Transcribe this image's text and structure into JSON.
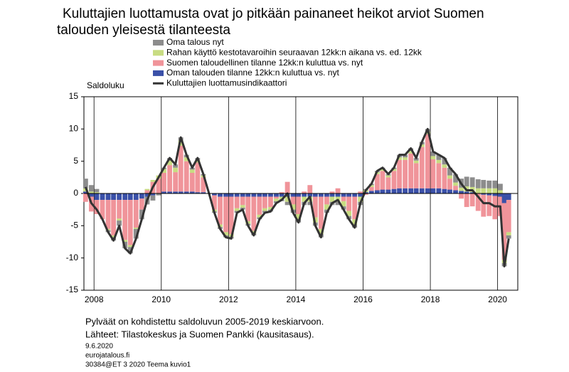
{
  "chart_data": {
    "type": "bar",
    "title_lines": [
      "Kuluttajien luottamusta ovat jo pitkään painaneet heikot arviot Suomen",
      "talouden yleisestä tilanteesta"
    ],
    "y_label": "Saldoluku",
    "notes": [
      "Pylväät on kohdistettu saldoluvun 2005-2019 keskiarvoon.",
      "Lähteet: Tilastokeskus ja Suomen Pankki (kausitasaus)."
    ],
    "footer": [
      "9.6.2020",
      "eurojatalous.fi",
      "30384@ET 3 2020 Teema kuvio1"
    ],
    "x": [
      2007.75,
      2007.92,
      2008.08,
      2008.25,
      2008.42,
      2008.58,
      2008.75,
      2008.92,
      2009.08,
      2009.25,
      2009.42,
      2009.58,
      2009.75,
      2009.92,
      2010.08,
      2010.25,
      2010.42,
      2010.58,
      2010.75,
      2010.92,
      2011.08,
      2011.25,
      2011.42,
      2011.58,
      2011.75,
      2011.92,
      2012.08,
      2012.25,
      2012.42,
      2012.58,
      2012.75,
      2012.92,
      2013.08,
      2013.25,
      2013.42,
      2013.58,
      2013.75,
      2013.92,
      2014.08,
      2014.25,
      2014.42,
      2014.58,
      2014.75,
      2014.92,
      2015.08,
      2015.25,
      2015.42,
      2015.58,
      2015.75,
      2015.92,
      2016.08,
      2016.25,
      2016.42,
      2016.58,
      2016.75,
      2016.92,
      2017.08,
      2017.25,
      2017.42,
      2017.58,
      2017.75,
      2017.92,
      2018.08,
      2018.25,
      2018.42,
      2018.58,
      2018.75,
      2018.92,
      2019.08,
      2019.25,
      2019.42,
      2019.58,
      2019.75,
      2019.92,
      2020.08,
      2020.2,
      2020.33
    ],
    "xlim": [
      2007.7,
      2020.6
    ],
    "xticks": [
      2008,
      2010,
      2012,
      2014,
      2016,
      2018,
      2020
    ],
    "ylim": [
      -15,
      15
    ],
    "yticks": [
      -15,
      -10,
      -5,
      0,
      5,
      10,
      15
    ],
    "grid": true,
    "series": [
      {
        "name": "Oma talous nyt",
        "color": "#8c8c8c",
        "type": "bar",
        "values": [
          1.5,
          1,
          0.5,
          0,
          -0.3,
          -0.5,
          -0.8,
          -1,
          -1,
          -1.5,
          -1.5,
          -1.2,
          -0.8,
          -0.3,
          0.2,
          0.4,
          0.5,
          0.5,
          0.4,
          0.3,
          0.3,
          0.2,
          0,
          -0.2,
          -0.3,
          -0.3,
          -0.3,
          -0.3,
          -0.3,
          -0.3,
          -0.3,
          -0.3,
          -0.3,
          -0.3,
          -0.3,
          -0.3,
          -0.5,
          -0.5,
          -0.5,
          -0.5,
          -0.5,
          -0.5,
          -0.5,
          -0.5,
          -0.5,
          -0.5,
          -0.5,
          -0.5,
          -0.5,
          -0.5,
          0.2,
          0.2,
          0.2,
          0.2,
          0.2,
          0.2,
          0.4,
          0.4,
          0.4,
          0.4,
          0.4,
          0.4,
          0.7,
          0.8,
          1,
          1.2,
          1.3,
          1.4,
          1.5,
          1.5,
          1.4,
          1.3,
          1.2,
          1.2,
          1,
          -0.5,
          -0.5
        ]
      },
      {
        "name": "Rahan käyttö kestotavaroihin seuraavan 12kk:n aikana vs. ed. 12kk",
        "color": "#c8dc82",
        "type": "bar",
        "values": [
          0.5,
          0.3,
          0.2,
          0,
          -0.2,
          -0.3,
          -0.3,
          -0.3,
          -0.3,
          -0.2,
          0,
          0.2,
          0.3,
          0.5,
          0.6,
          0.7,
          0.7,
          0.8,
          0.6,
          0.5,
          0.4,
          0.3,
          0,
          -0.3,
          -0.4,
          -0.5,
          -0.4,
          -0.4,
          -0.4,
          -0.4,
          -0.4,
          -0.4,
          -0.4,
          -0.4,
          -0.4,
          -0.4,
          -0.8,
          -0.8,
          -0.8,
          -0.8,
          -0.8,
          -0.8,
          -0.8,
          -0.8,
          -0.8,
          -0.8,
          -0.8,
          -0.8,
          -0.8,
          -0.8,
          0.3,
          0.3,
          0.3,
          0.3,
          0.3,
          0.3,
          0.4,
          0.4,
          0.4,
          0.4,
          0.4,
          0.4,
          0.5,
          0.5,
          0.5,
          0.5,
          0.5,
          0.5,
          0.8,
          0.8,
          0.8,
          0.8,
          0.8,
          0.8,
          0.5,
          -0.5,
          -0.5
        ]
      },
      {
        "name": "Suomen taloudellinen tilanne 12kk:n kuluttua vs. nyt",
        "color": "#f0949a",
        "type": "bar",
        "values": [
          -1.3,
          -2.3,
          -2.2,
          -3,
          -4.5,
          -5.5,
          -2.9,
          -6.2,
          -7,
          -4.3,
          -1.7,
          0.5,
          1.8,
          2.3,
          2.9,
          4.1,
          3,
          7.1,
          4.7,
          2.9,
          4.6,
          2.3,
          0,
          -2.2,
          -4.3,
          -5.5,
          -5.8,
          -1.8,
          -1.3,
          -3.8,
          -5.3,
          -2.8,
          -1.8,
          -1.6,
          -0.3,
          0.2,
          1.8,
          -1.2,
          -2.7,
          0.3,
          1.3,
          -3.2,
          -5,
          -1.2,
          0.3,
          0.8,
          -0.7,
          -2.2,
          -3.5,
          0.3,
          -0.2,
          0.6,
          2.5,
          2.9,
          1.9,
          2.8,
          4.4,
          4.4,
          5.4,
          3.9,
          6.4,
          8.4,
          4.5,
          3.9,
          3.3,
          1.7,
          0.7,
          -0.8,
          -2.1,
          -2,
          -2.7,
          -3.4,
          -3.2,
          -3.6,
          -3,
          -8.8,
          -5
        ]
      },
      {
        "name": "Oman talouden tilanne 12kk:n kuluttua vs. nyt",
        "color": "#3a50a8",
        "type": "bar",
        "values": [
          0.3,
          -0.5,
          -1,
          -1,
          -1,
          -1,
          -1,
          -1,
          -1,
          -1,
          -0.8,
          -0.5,
          -0.3,
          0,
          0.3,
          0.3,
          0.3,
          0.3,
          0.3,
          0.3,
          0.2,
          0.2,
          0,
          -0.3,
          -0.5,
          -0.5,
          -0.5,
          -0.5,
          -0.5,
          -0.5,
          -0.5,
          -0.5,
          -0.5,
          -0.5,
          -0.5,
          -0.5,
          -0.5,
          -0.5,
          -0.5,
          -0.5,
          -0.5,
          -0.5,
          -0.5,
          -0.5,
          -0.5,
          -0.5,
          -0.5,
          -0.5,
          -0.5,
          -0.5,
          0.2,
          0.4,
          0.5,
          0.6,
          0.6,
          0.7,
          0.8,
          0.8,
          0.8,
          0.8,
          0.8,
          0.8,
          0.8,
          0.8,
          0.7,
          0.6,
          0.5,
          0.4,
          0.3,
          0.2,
          0,
          -0.2,
          -0.3,
          -0.4,
          -0.5,
          -1.5,
          -1
        ]
      },
      {
        "name": "Kuluttajien luottamusindikaattori",
        "color": "#333333",
        "type": "line",
        "values": [
          1,
          -1.5,
          -2.5,
          -4,
          -6,
          -7.3,
          -5,
          -8.5,
          -9.3,
          -7,
          -4,
          -1,
          1,
          2.5,
          4,
          5.5,
          4.5,
          8.7,
          6,
          4,
          5.5,
          3,
          0,
          -3,
          -5.5,
          -6.8,
          -7,
          -3,
          -2.5,
          -5,
          -6.5,
          -4,
          -3,
          -2.8,
          -1.5,
          -1,
          0,
          -3,
          -4.5,
          -1.5,
          -0.5,
          -5,
          -6.8,
          -3,
          -1.5,
          -1,
          -2.5,
          -4,
          -5.3,
          -1.5,
          0.5,
          1.5,
          3.5,
          4,
          3,
          4,
          6,
          6,
          7,
          5.5,
          8,
          10,
          6.5,
          6,
          5.5,
          4,
          3,
          1.5,
          0.5,
          0.5,
          -0.5,
          -1.5,
          -1.5,
          -2,
          -2,
          -11.3,
          -7
        ]
      }
    ]
  }
}
